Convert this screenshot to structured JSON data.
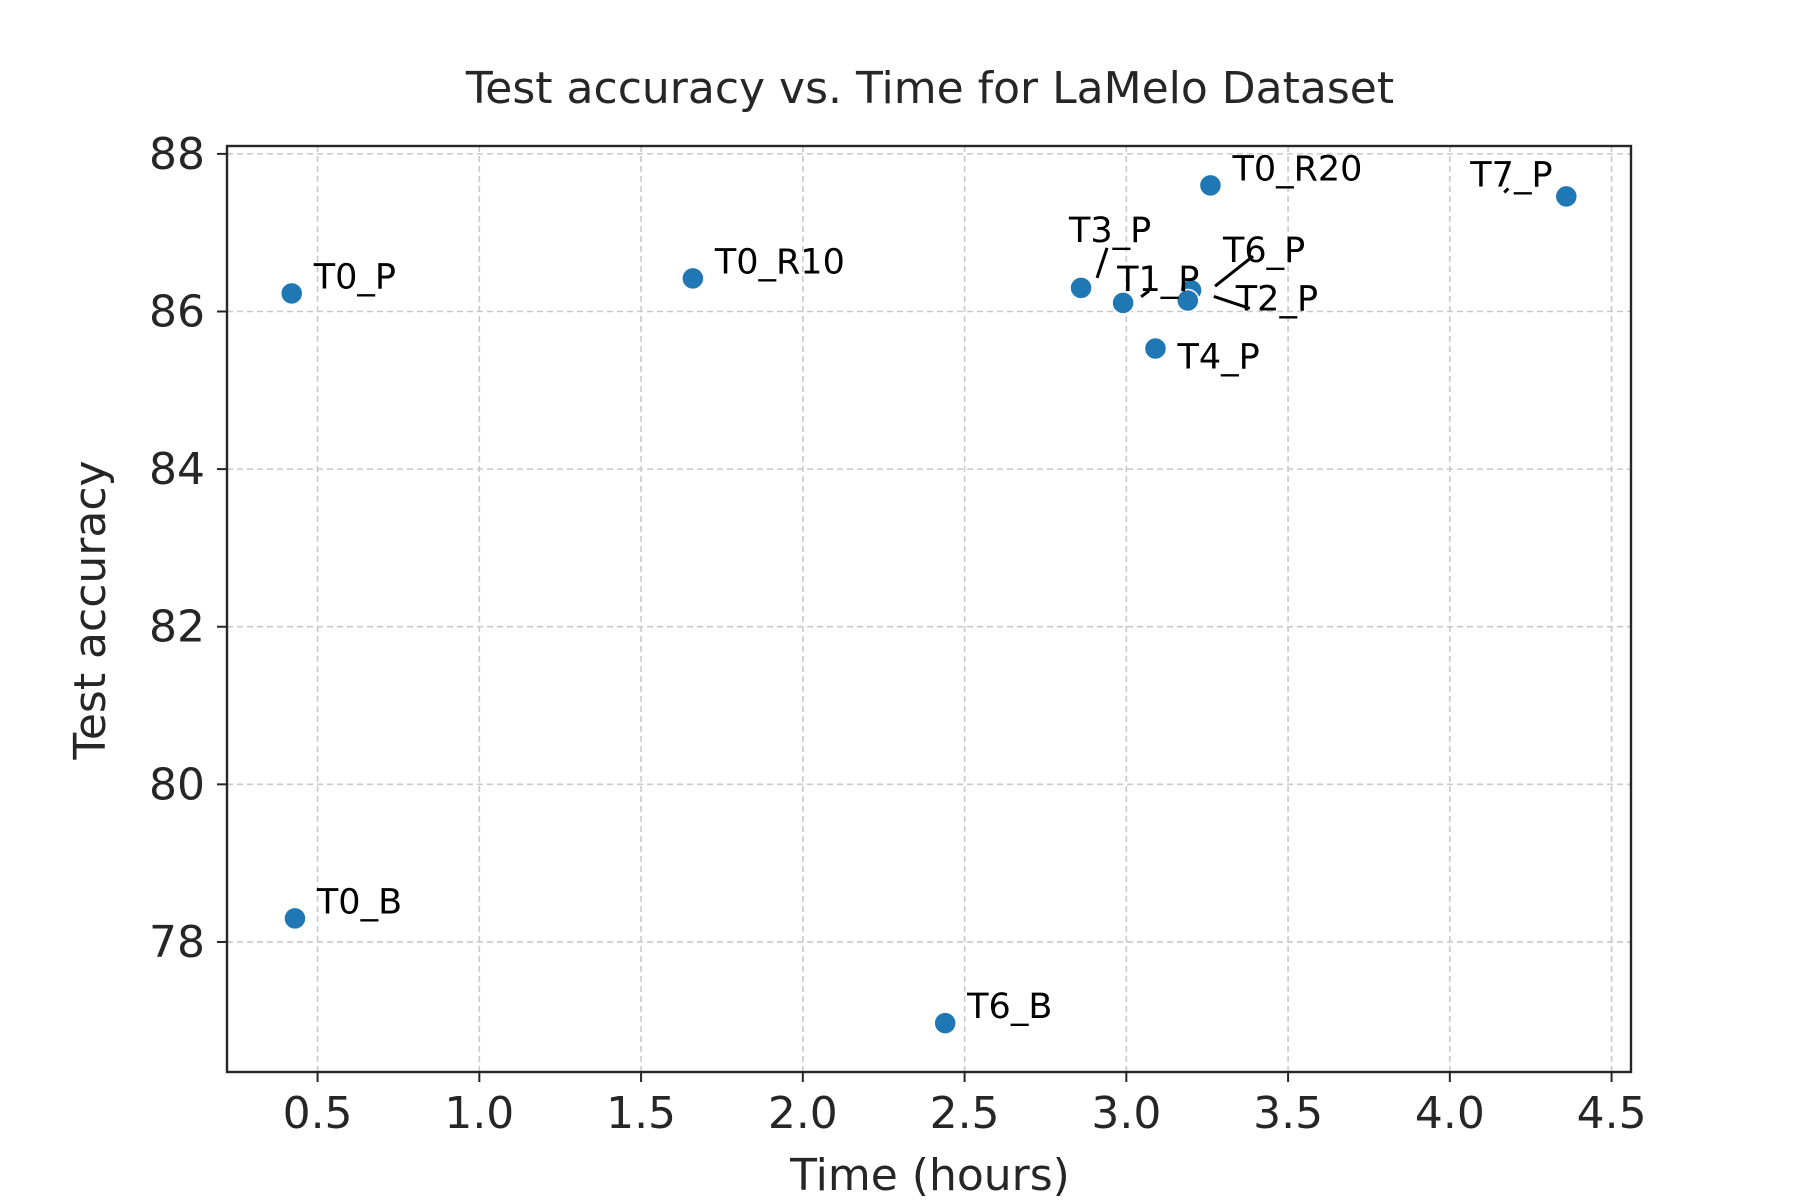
{
  "chart_data": {
    "type": "scatter",
    "title": "Test accuracy vs. Time for LaMelo Dataset",
    "xlabel": "Time (hours)",
    "ylabel": "Test accuracy",
    "xlim": [
      0.22,
      4.56
    ],
    "ylim": [
      76.35,
      88.1
    ],
    "xticks": [
      0.5,
      1.0,
      1.5,
      2.0,
      2.5,
      3.0,
      3.5,
      4.0,
      4.5
    ],
    "xtick_labels": [
      "0.5",
      "1.0",
      "1.5",
      "2.0",
      "2.5",
      "3.0",
      "3.5",
      "4.0",
      "4.5"
    ],
    "yticks": [
      78,
      80,
      82,
      84,
      86,
      88
    ],
    "ytick_labels": [
      "78",
      "80",
      "82",
      "84",
      "86",
      "88"
    ],
    "grid": true,
    "color": "#1f77b4",
    "points": [
      {
        "label": "T0_P",
        "x": 0.42,
        "y": 86.23
      },
      {
        "label": "T0_B",
        "x": 0.43,
        "y": 78.3
      },
      {
        "label": "T0_R10",
        "x": 1.66,
        "y": 86.42
      },
      {
        "label": "T6_B",
        "x": 2.44,
        "y": 76.97
      },
      {
        "label": "T3_P",
        "x": 2.86,
        "y": 86.3
      },
      {
        "label": "T1_P",
        "x": 2.99,
        "y": 86.11
      },
      {
        "label": "T4_P",
        "x": 3.09,
        "y": 85.53
      },
      {
        "label": "T6_P",
        "x": 3.2,
        "y": 86.27
      },
      {
        "label": "T2_P",
        "x": 3.19,
        "y": 86.14
      },
      {
        "label": "T0_R20",
        "x": 3.26,
        "y": 87.6
      },
      {
        "label": "T7_P",
        "x": 4.36,
        "y": 87.46
      }
    ]
  }
}
